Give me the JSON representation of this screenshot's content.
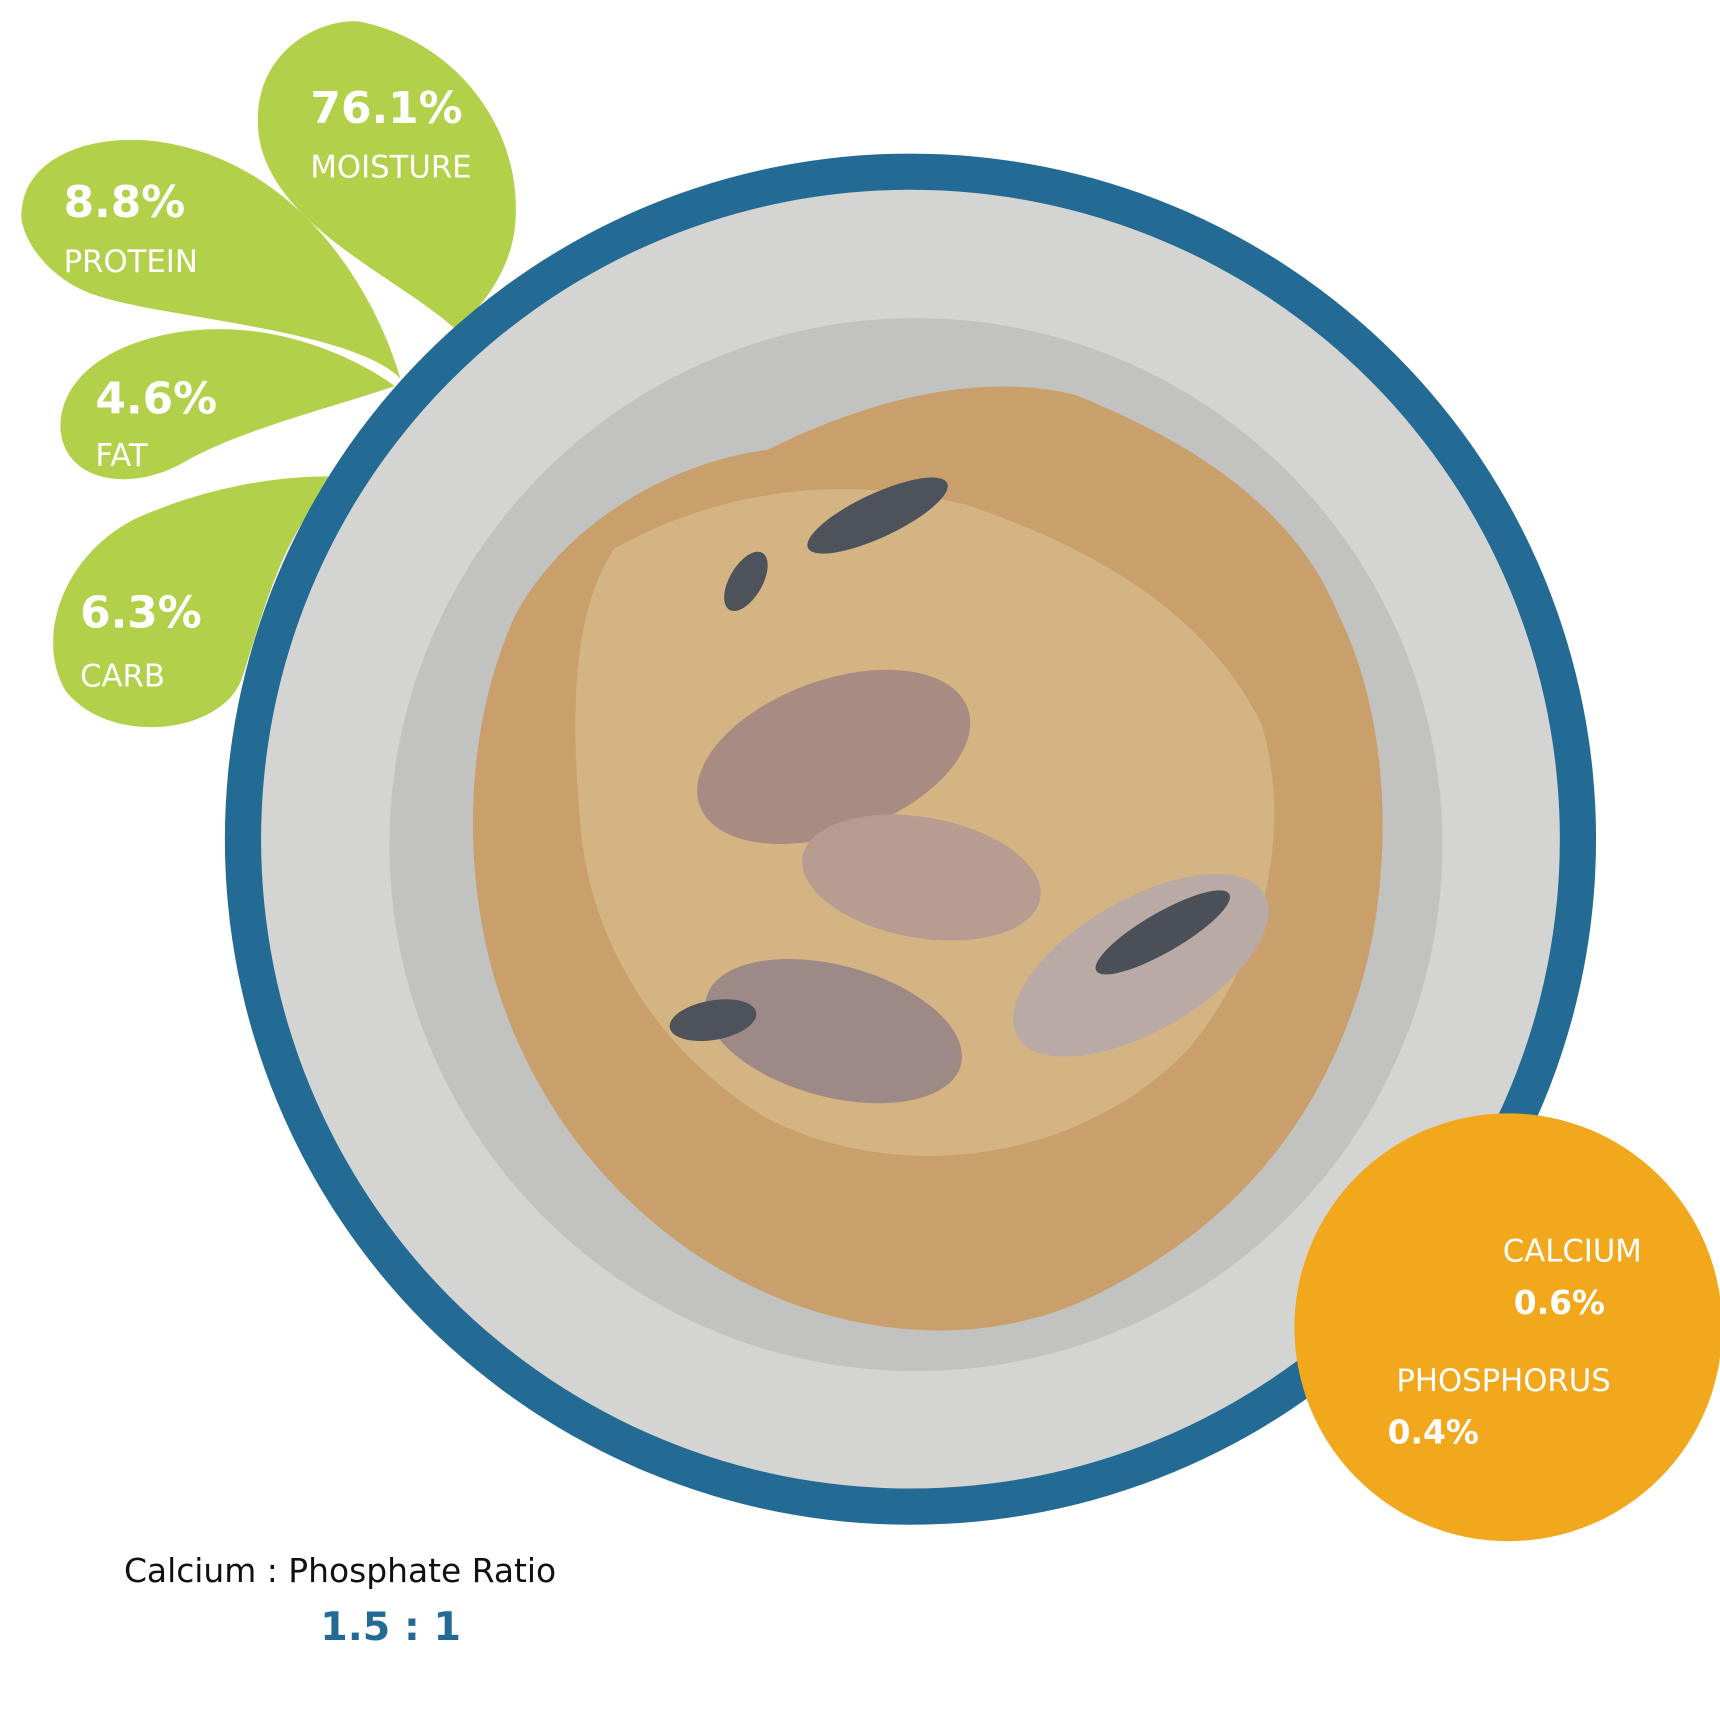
{
  "nutrients": [
    {
      "value": "76.1%",
      "label": "MOISTURE"
    },
    {
      "value": "8.8%",
      "label": "PROTEIN"
    },
    {
      "value": "4.6%",
      "label": "FAT"
    },
    {
      "value": "6.3%",
      "label": "CARB"
    }
  ],
  "minerals": [
    {
      "label": "CALCIUM",
      "value": "0.6%"
    },
    {
      "label": "PHOSPHORUS",
      "value": "0.4%"
    }
  ],
  "ratio": {
    "title": "Calcium : Phosphate Ratio",
    "value": "1.5 : 1"
  }
}
